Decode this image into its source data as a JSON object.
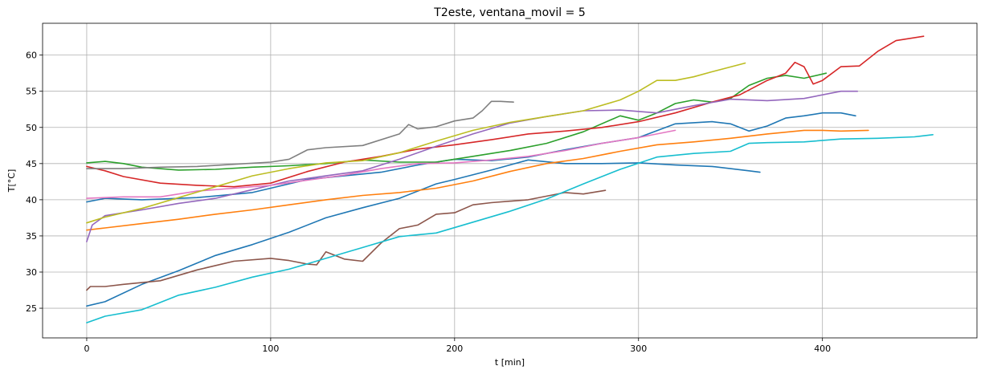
{
  "chart_data": {
    "type": "line",
    "title": "T2este, ventana_movil = 5",
    "xlabel": "t [min]",
    "ylabel": "T[°C]",
    "xlim": [
      -24,
      484
    ],
    "ylim": [
      20.9,
      64.4
    ],
    "xticks": [
      0,
      100,
      200,
      300,
      400
    ],
    "yticks": [
      25,
      30,
      35,
      40,
      45,
      50,
      55,
      60
    ],
    "grid": true,
    "series": [
      {
        "color": "#1f77b4",
        "x": [
          0,
          10,
          30,
          50,
          70,
          90,
          110,
          130,
          150,
          170,
          190,
          200,
          220,
          240,
          260,
          280,
          300,
          320,
          340,
          360,
          366
        ],
        "y": [
          25.3,
          25.9,
          28.3,
          30.2,
          32.3,
          33.8,
          35.5,
          37.5,
          38.9,
          40.2,
          42.2,
          42.8,
          44.1,
          45.5,
          45.0,
          45.0,
          45.1,
          44.8,
          44.6,
          44.0,
          43.8
        ]
      },
      {
        "color": "#1f77b4",
        "x": [
          0,
          10,
          30,
          60,
          90,
          100,
          120,
          140,
          160,
          180,
          200,
          220,
          240,
          260,
          280,
          300,
          320,
          340,
          350,
          360,
          370,
          380,
          390,
          400,
          410,
          418
        ],
        "y": [
          39.7,
          40.2,
          40.0,
          40.3,
          41.0,
          41.6,
          42.8,
          43.3,
          43.8,
          44.8,
          45.6,
          45.4,
          45.9,
          46.9,
          47.8,
          48.6,
          50.5,
          50.8,
          50.5,
          49.5,
          50.2,
          51.3,
          51.6,
          52.0,
          52.0,
          51.6
        ]
      },
      {
        "color": "#ff7f0e",
        "x": [
          0,
          10,
          30,
          50,
          70,
          90,
          110,
          130,
          150,
          170,
          190,
          210,
          230,
          250,
          270,
          290,
          310,
          330,
          350,
          370,
          390,
          400,
          410,
          425
        ],
        "y": [
          35.8,
          36.1,
          36.7,
          37.3,
          38.0,
          38.6,
          39.3,
          40.0,
          40.6,
          41.0,
          41.6,
          42.6,
          43.9,
          45.0,
          45.7,
          46.7,
          47.6,
          48.0,
          48.5,
          49.1,
          49.6,
          49.6,
          49.5,
          49.6
        ]
      },
      {
        "color": "#2ca02c",
        "x": [
          0,
          10,
          20,
          30,
          50,
          70,
          90,
          110,
          130,
          150,
          170,
          190,
          210,
          230,
          250,
          270,
          290,
          300,
          310,
          320,
          330,
          340,
          350,
          360,
          370,
          380,
          390,
          402
        ],
        "y": [
          45.1,
          45.3,
          45.0,
          44.5,
          44.1,
          44.2,
          44.5,
          44.7,
          45.0,
          45.5,
          45.2,
          45.2,
          46.0,
          46.8,
          47.8,
          49.4,
          51.6,
          51.0,
          52.0,
          53.3,
          53.8,
          53.5,
          54.0,
          55.8,
          56.8,
          57.2,
          56.8,
          57.5
        ]
      },
      {
        "color": "#d62728",
        "x": [
          0,
          10,
          20,
          40,
          60,
          80,
          100,
          120,
          140,
          160,
          180,
          200,
          220,
          240,
          260,
          280,
          300,
          320,
          340,
          355,
          370,
          380,
          385,
          390,
          395,
          400,
          410,
          420,
          430,
          440,
          455
        ],
        "y": [
          44.6,
          44.0,
          43.2,
          42.3,
          42.0,
          41.8,
          42.3,
          43.9,
          45.2,
          46.0,
          47.0,
          47.6,
          48.3,
          49.1,
          49.5,
          50.0,
          50.8,
          52.0,
          53.5,
          54.5,
          56.5,
          57.5,
          59.0,
          58.4,
          56.0,
          56.5,
          58.4,
          58.5,
          60.5,
          62.0,
          62.6
        ]
      },
      {
        "color": "#9467bd",
        "x": [
          0,
          3,
          10,
          30,
          50,
          70,
          90,
          110,
          130,
          150,
          170,
          190,
          210,
          230,
          250,
          270,
          290,
          310,
          330,
          350,
          370,
          390,
          410,
          419
        ],
        "y": [
          34.2,
          36.5,
          37.8,
          38.6,
          39.5,
          40.2,
          41.4,
          42.6,
          43.3,
          44.0,
          45.6,
          47.4,
          49.1,
          50.6,
          51.5,
          52.3,
          52.4,
          52.0,
          53.0,
          53.9,
          53.7,
          54.0,
          55.0,
          55.0
        ]
      },
      {
        "color": "#8c564b",
        "x": [
          0,
          2,
          10,
          20,
          40,
          60,
          80,
          100,
          110,
          120,
          125,
          130,
          140,
          150,
          160,
          170,
          180,
          190,
          200,
          210,
          220,
          240,
          260,
          270,
          282
        ],
        "y": [
          27.5,
          28.0,
          28.0,
          28.3,
          28.8,
          30.3,
          31.5,
          31.9,
          31.6,
          31.1,
          31.0,
          32.8,
          31.8,
          31.5,
          34.0,
          36.0,
          36.5,
          38.0,
          38.2,
          39.3,
          39.6,
          40.0,
          41.0,
          40.8,
          41.3
        ]
      },
      {
        "color": "#e377c2",
        "x": [
          0,
          20,
          40,
          60,
          80,
          100,
          120,
          140,
          160,
          180,
          200,
          220,
          240,
          260,
          280,
          300,
          320
        ],
        "y": [
          40.2,
          40.4,
          40.4,
          41.2,
          41.6,
          42.0,
          42.7,
          43.4,
          44.3,
          45.0,
          45.1,
          45.5,
          46.0,
          46.8,
          47.8,
          48.6,
          49.6
        ]
      },
      {
        "color": "#7f7f7f",
        "x": [
          0,
          20,
          40,
          60,
          80,
          100,
          110,
          120,
          130,
          150,
          170,
          175,
          180,
          190,
          200,
          210,
          215,
          220,
          225,
          232
        ],
        "y": [
          44.3,
          44.3,
          44.5,
          44.6,
          44.9,
          45.2,
          45.6,
          46.9,
          47.2,
          47.5,
          49.1,
          50.4,
          49.8,
          50.1,
          50.9,
          51.3,
          52.3,
          53.6,
          53.6,
          53.5
        ]
      },
      {
        "color": "#bcbd22",
        "x": [
          0,
          10,
          30,
          50,
          70,
          90,
          110,
          130,
          150,
          170,
          190,
          210,
          230,
          250,
          270,
          290,
          300,
          310,
          320,
          330,
          340,
          358
        ],
        "y": [
          36.8,
          37.6,
          38.8,
          40.3,
          41.8,
          43.3,
          44.3,
          45.1,
          45.4,
          46.5,
          48.1,
          49.6,
          50.7,
          51.5,
          52.3,
          53.8,
          55.0,
          56.5,
          56.5,
          57.0,
          57.7,
          58.9
        ]
      },
      {
        "color": "#17becf",
        "x": [
          0,
          10,
          30,
          50,
          70,
          90,
          110,
          130,
          150,
          170,
          190,
          210,
          230,
          250,
          270,
          290,
          310,
          330,
          350,
          360,
          370,
          390,
          410,
          430,
          450,
          460
        ],
        "y": [
          23.0,
          23.9,
          24.8,
          26.8,
          27.9,
          29.3,
          30.4,
          31.9,
          33.4,
          34.9,
          35.4,
          36.9,
          38.4,
          40.1,
          42.2,
          44.2,
          45.9,
          46.4,
          46.7,
          47.8,
          47.9,
          48.0,
          48.4,
          48.5,
          48.7,
          49.0
        ]
      }
    ]
  }
}
